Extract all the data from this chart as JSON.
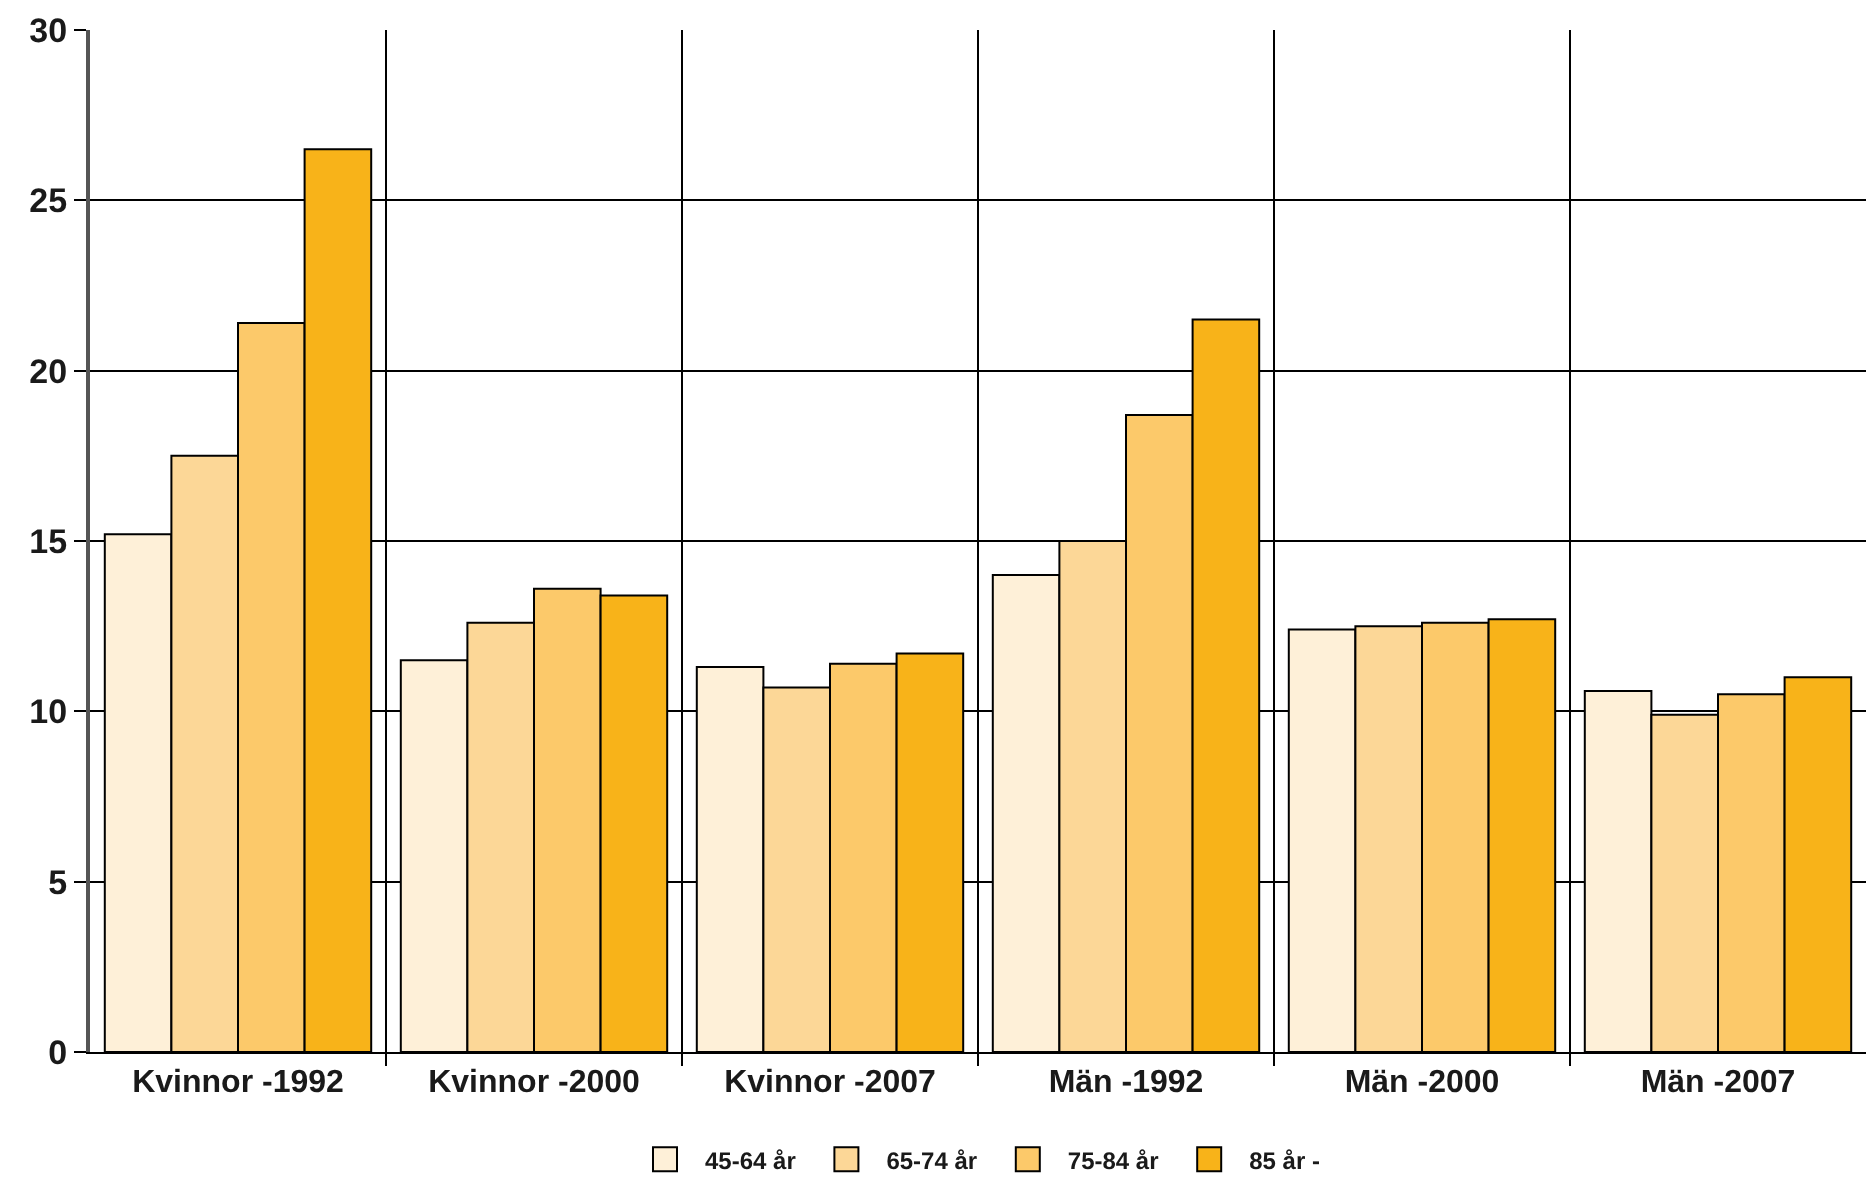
{
  "chart_data": {
    "type": "bar",
    "categories": [
      "Kvinnor -1992",
      "Kvinnor -2000",
      "Kvinnor -2007",
      "Män -1992",
      "Män -2000",
      "Män -2007"
    ],
    "series": [
      {
        "name": "45-64 år",
        "color": "#fef0d8",
        "values": [
          15.2,
          11.5,
          11.3,
          14.0,
          12.4,
          10.6
        ]
      },
      {
        "name": "65-74 år",
        "color": "#fcd797",
        "values": [
          17.5,
          12.6,
          10.7,
          15.0,
          12.5,
          9.9
        ]
      },
      {
        "name": "75-84 år",
        "color": "#fcc96a",
        "values": [
          21.4,
          13.6,
          11.4,
          18.7,
          12.6,
          10.5
        ]
      },
      {
        "name": "85 år -",
        "color": "#f8b319",
        "values": [
          26.5,
          13.4,
          11.7,
          21.5,
          12.7,
          11.0
        ]
      }
    ],
    "ylim": [
      0,
      30
    ],
    "yticks": [
      0,
      5,
      10,
      15,
      20,
      25,
      30
    ],
    "grid": true,
    "legend": "bottom"
  }
}
